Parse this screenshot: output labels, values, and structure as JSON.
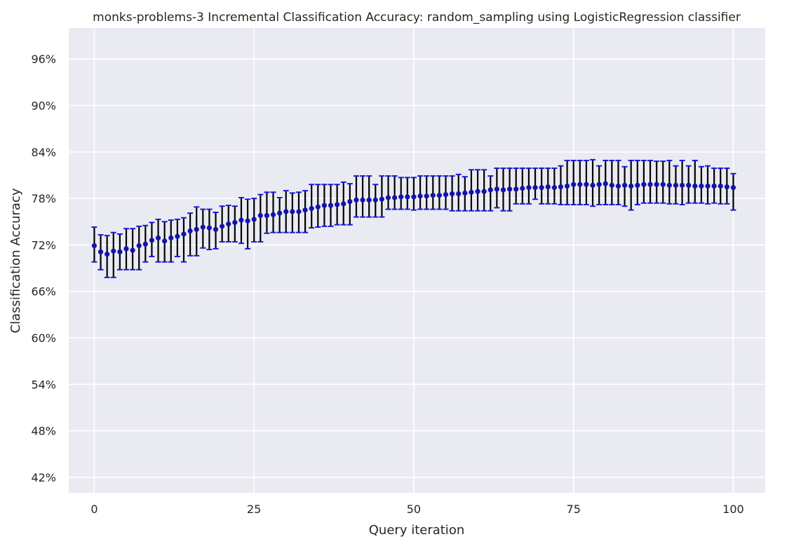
{
  "chart_data": {
    "type": "scatter",
    "title": "monks-problems-3 Incremental Classification Accuracy: random_sampling using LogisticRegression classifier",
    "xlabel": "Query iteration",
    "ylabel": "Classification Accuracy",
    "xlim": [
      -4,
      105
    ],
    "ylim": [
      40,
      100
    ],
    "xticks": [
      0,
      25,
      50,
      75,
      100
    ],
    "yticks": [
      42,
      48,
      54,
      60,
      66,
      72,
      78,
      84,
      90,
      96
    ],
    "ytick_labels": [
      "42%",
      "48%",
      "54%",
      "60%",
      "66%",
      "72%",
      "78%",
      "84%",
      "90%",
      "96%"
    ],
    "grid": true,
    "colors": {
      "background": "#eaeaf2",
      "grid": "#ffffff",
      "marker": "#1212b0",
      "errorbar": "#000000",
      "cap": "#1a1ae0"
    },
    "series": [
      {
        "name": "random_sampling",
        "x": [
          0,
          1,
          2,
          3,
          4,
          5,
          6,
          7,
          8,
          9,
          10,
          11,
          12,
          13,
          14,
          15,
          16,
          17,
          18,
          19,
          20,
          21,
          22,
          23,
          24,
          25,
          26,
          27,
          28,
          29,
          30,
          31,
          32,
          33,
          34,
          35,
          36,
          37,
          38,
          39,
          40,
          41,
          42,
          43,
          44,
          45,
          46,
          47,
          48,
          49,
          50,
          51,
          52,
          53,
          54,
          55,
          56,
          57,
          58,
          59,
          60,
          61,
          62,
          63,
          64,
          65,
          66,
          67,
          68,
          69,
          70,
          71,
          72,
          73,
          74,
          75,
          76,
          77,
          78,
          79,
          80,
          81,
          82,
          83,
          84,
          85,
          86,
          87,
          88,
          89,
          90,
          91,
          92,
          93,
          94,
          95,
          96,
          97,
          98,
          99,
          100
        ],
        "y": [
          71.9,
          71.1,
          70.8,
          71.2,
          71.1,
          71.5,
          71.3,
          71.9,
          72.1,
          72.6,
          72.9,
          72.5,
          72.9,
          73.1,
          73.4,
          73.8,
          74.0,
          74.3,
          74.2,
          74.0,
          74.4,
          74.7,
          74.9,
          75.2,
          75.1,
          75.3,
          75.8,
          75.8,
          75.9,
          76.1,
          76.3,
          76.3,
          76.3,
          76.5,
          76.7,
          76.9,
          77.1,
          77.1,
          77.2,
          77.3,
          77.6,
          77.8,
          77.8,
          77.8,
          77.8,
          77.9,
          78.1,
          78.1,
          78.2,
          78.2,
          78.2,
          78.3,
          78.3,
          78.4,
          78.4,
          78.5,
          78.6,
          78.6,
          78.7,
          78.8,
          78.9,
          78.9,
          79.1,
          79.2,
          79.1,
          79.2,
          79.2,
          79.3,
          79.4,
          79.4,
          79.4,
          79.5,
          79.4,
          79.5,
          79.6,
          79.8,
          79.8,
          79.8,
          79.7,
          79.8,
          79.9,
          79.7,
          79.6,
          79.7,
          79.6,
          79.7,
          79.8,
          79.8,
          79.8,
          79.8,
          79.7,
          79.7,
          79.7,
          79.7,
          79.6,
          79.6,
          79.6,
          79.6,
          79.6,
          79.5,
          79.4
        ],
        "yerr_low": [
          69.8,
          68.8,
          67.8,
          67.8,
          68.8,
          68.8,
          68.8,
          68.8,
          69.8,
          70.5,
          69.8,
          69.8,
          69.8,
          70.5,
          69.8,
          70.6,
          70.6,
          71.6,
          71.4,
          71.5,
          72.4,
          72.4,
          72.4,
          72.2,
          71.5,
          72.4,
          72.4,
          73.5,
          73.6,
          73.6,
          73.6,
          73.6,
          73.6,
          73.6,
          74.2,
          74.3,
          74.4,
          74.4,
          74.6,
          74.6,
          74.6,
          75.6,
          75.6,
          75.6,
          75.6,
          75.6,
          76.6,
          76.6,
          76.6,
          76.6,
          76.5,
          76.6,
          76.6,
          76.6,
          76.6,
          76.6,
          76.4,
          76.4,
          76.4,
          76.4,
          76.4,
          76.4,
          76.4,
          76.8,
          76.4,
          76.4,
          77.3,
          77.3,
          77.3,
          77.9,
          77.3,
          77.3,
          77.3,
          77.2,
          77.2,
          77.2,
          77.2,
          77.2,
          77.0,
          77.2,
          77.2,
          77.2,
          77.2,
          77.0,
          76.5,
          77.2,
          77.4,
          77.4,
          77.4,
          77.4,
          77.3,
          77.3,
          77.2,
          77.4,
          77.4,
          77.4,
          77.3,
          77.4,
          77.3,
          77.3,
          76.5
        ],
        "yerr_high": [
          74.3,
          73.3,
          73.2,
          73.6,
          73.4,
          74.1,
          74.1,
          74.4,
          74.5,
          74.9,
          75.3,
          75.0,
          75.2,
          75.3,
          75.5,
          76.1,
          76.9,
          76.6,
          76.6,
          76.2,
          77.0,
          77.1,
          77.0,
          78.1,
          77.9,
          78.0,
          78.5,
          78.8,
          78.8,
          78.1,
          79.0,
          78.7,
          78.8,
          79.0,
          79.8,
          79.8,
          79.8,
          79.8,
          79.8,
          80.1,
          79.9,
          80.9,
          80.9,
          80.9,
          79.8,
          80.9,
          80.9,
          80.9,
          80.7,
          80.7,
          80.7,
          80.9,
          80.9,
          80.9,
          80.9,
          80.9,
          80.9,
          81.1,
          80.8,
          81.7,
          81.7,
          81.7,
          80.9,
          81.9,
          81.9,
          81.9,
          81.9,
          81.9,
          81.9,
          81.9,
          81.9,
          81.9,
          81.9,
          82.2,
          82.9,
          82.9,
          82.9,
          82.9,
          83.0,
          82.2,
          82.9,
          82.9,
          82.9,
          82.1,
          82.9,
          82.9,
          82.9,
          82.9,
          82.8,
          82.8,
          82.9,
          82.2,
          82.9,
          82.2,
          82.9,
          82.1,
          82.2,
          81.9,
          81.9,
          81.9,
          81.2
        ]
      }
    ]
  }
}
